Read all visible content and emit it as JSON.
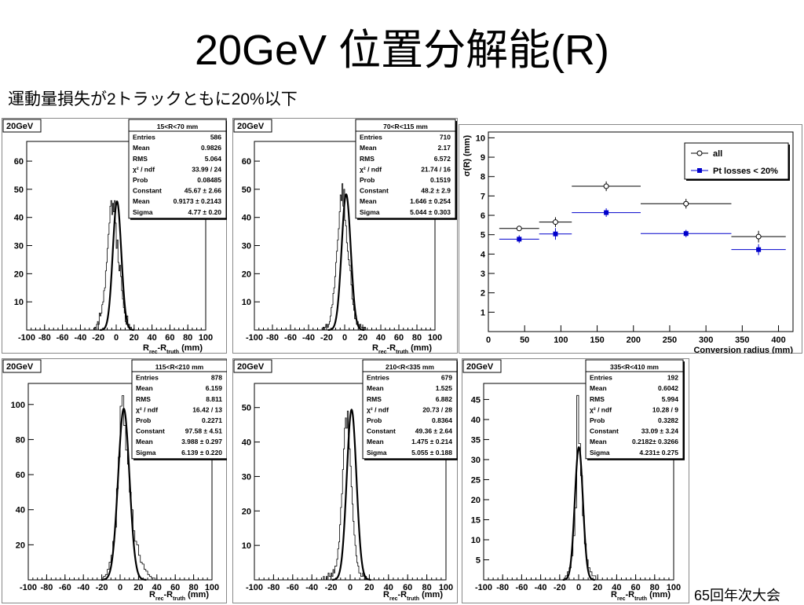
{
  "slide": {
    "title": "20GeV 位置分解能(R)",
    "subtitle": "運動量損失が2トラックともに20%以下",
    "footer": "65回年次大会"
  },
  "chart_data": [
    {
      "type": "histogram",
      "label": "20GeV",
      "stats_title": "15<R<70 mm",
      "stats": [
        [
          "Entries",
          "586"
        ],
        [
          "Mean",
          "0.9826"
        ],
        [
          "RMS",
          "5.064"
        ],
        [
          "χ² / ndf",
          "33.99 / 24"
        ],
        [
          "Prob",
          "0.08485"
        ],
        [
          "Constant",
          "45.67 ± 2.66"
        ],
        [
          "Mean",
          "0.9173 ± 0.2143"
        ],
        [
          "Sigma",
          "4.77 ± 0.20"
        ]
      ],
      "xlim": [
        -100,
        100
      ],
      "ylim": [
        0,
        67
      ],
      "xticks": [
        -100,
        -80,
        -60,
        -40,
        -20,
        0,
        20,
        40,
        60,
        80,
        100
      ],
      "yticks": [
        10,
        20,
        30,
        40,
        50,
        60
      ],
      "xlabel": [
        "R",
        "rec",
        "-R",
        "truth",
        " (mm)"
      ],
      "gauss": {
        "constant": 45.67,
        "mean": 0.9173,
        "sigma": 4.77
      },
      "bins": {
        "start": -24,
        "width": 1,
        "counts": [
          1,
          0,
          2,
          3,
          2,
          6,
          5,
          6,
          9,
          10,
          14,
          15,
          21,
          24,
          29,
          34,
          38,
          44,
          46,
          41,
          45,
          42,
          46,
          38,
          29,
          32,
          24,
          21,
          23,
          19,
          14,
          11,
          8,
          6,
          3,
          2,
          5,
          1,
          2,
          1,
          1,
          0
        ]
      }
    },
    {
      "type": "histogram",
      "label": "20GeV",
      "stats_title": "70<R<115 mm",
      "stats": [
        [
          "Entries",
          "710"
        ],
        [
          "Mean",
          "2.17"
        ],
        [
          "RMS",
          "6.572"
        ],
        [
          "χ² / ndf",
          "21.74 / 16"
        ],
        [
          "Prob",
          "0.1519"
        ],
        [
          "Constant",
          "48.2 ± 2.9"
        ],
        [
          "Mean",
          "1.646 ± 0.254"
        ],
        [
          "Sigma",
          "5.044 ± 0.303"
        ]
      ],
      "xlim": [
        -100,
        100
      ],
      "ylim": [
        0,
        67
      ],
      "xticks": [
        -100,
        -80,
        -60,
        -40,
        -20,
        0,
        20,
        40,
        60,
        80,
        100
      ],
      "yticks": [
        10,
        20,
        30,
        40,
        50,
        60
      ],
      "xlabel": [
        "R",
        "rec",
        "-R",
        "truth",
        " (mm)"
      ],
      "gauss": {
        "constant": 48.2,
        "mean": 1.646,
        "sigma": 5.044
      },
      "bins": {
        "start": -24,
        "width": 1,
        "counts": [
          1,
          0,
          1,
          2,
          2,
          1,
          2,
          3,
          5,
          8,
          9,
          13,
          15,
          19,
          24,
          28,
          32,
          36,
          42,
          48,
          46,
          52,
          44,
          50,
          39,
          37,
          31,
          28,
          25,
          23,
          21,
          16,
          11,
          9,
          7,
          4,
          5,
          2,
          3,
          2,
          1,
          2,
          1,
          1,
          1,
          0,
          1,
          0
        ]
      }
    },
    {
      "type": "scatter",
      "xlabel": "Conversion radius (mm)",
      "ylabel": "σ(R) (mm)",
      "xlim": [
        0,
        420
      ],
      "ylim": [
        0,
        10.3
      ],
      "xticks": [
        0,
        50,
        100,
        150,
        200,
        250,
        300,
        350,
        400
      ],
      "yticks": [
        1,
        2,
        3,
        4,
        5,
        6,
        7,
        8,
        9,
        10
      ],
      "series": [
        {
          "name": "all",
          "color": "#000000",
          "marker": "open-circle",
          "points": [
            [
              42.5,
              27.5,
              5.32,
              0.12
            ],
            [
              92.5,
              22.5,
              5.65,
              0.25
            ],
            [
              162.5,
              47.5,
              7.5,
              0.25
            ],
            [
              272.5,
              62.5,
              6.6,
              0.25
            ],
            [
              372.5,
              37.5,
              4.9,
              0.3
            ]
          ]
        },
        {
          "name": "Pt losses < 20%",
          "color": "#0000cc",
          "marker": "filled-square",
          "points": [
            [
              42.5,
              27.5,
              4.77,
              0.2
            ],
            [
              92.5,
              22.5,
              5.04,
              0.3
            ],
            [
              162.5,
              47.5,
              6.14,
              0.22
            ],
            [
              272.5,
              62.5,
              5.06,
              0.19
            ],
            [
              372.5,
              37.5,
              4.23,
              0.28
            ]
          ]
        }
      ]
    },
    {
      "type": "histogram",
      "label": "20GeV",
      "stats_title": "115<R<210 mm",
      "stats": [
        [
          "Entries",
          "878"
        ],
        [
          "Mean",
          "6.159"
        ],
        [
          "RMS",
          "8.811"
        ],
        [
          "χ² / ndf",
          "16.42 / 13"
        ],
        [
          "Prob",
          "0.2271"
        ],
        [
          "Constant",
          "97.58 ± 4.51"
        ],
        [
          "Mean",
          "3.988 ± 0.297"
        ],
        [
          "Sigma",
          "6.139 ± 0.220"
        ]
      ],
      "xlim": [
        -100,
        100
      ],
      "ylim": [
        0,
        112
      ],
      "xticks": [
        -100,
        -80,
        -60,
        -40,
        -20,
        0,
        20,
        40,
        60,
        80,
        100
      ],
      "yticks": [
        20,
        40,
        60,
        80,
        100
      ],
      "xlabel": [
        "R",
        "rec",
        "-R",
        "truth",
        " (mm)"
      ],
      "gauss": {
        "constant": 97.58,
        "mean": 3.988,
        "sigma": 6.139
      },
      "bins": {
        "start": -20,
        "width": 2,
        "counts": [
          1,
          2,
          3,
          6,
          10,
          14,
          22,
          30,
          52,
          70,
          99,
          105,
          88,
          74,
          66,
          50,
          40,
          28,
          22,
          20,
          14,
          10,
          9,
          6,
          5,
          3,
          2,
          1,
          1,
          0
        ]
      }
    },
    {
      "type": "histogram",
      "label": "20GeV",
      "stats_title": "210<R<335 mm",
      "stats": [
        [
          "Entries",
          "679"
        ],
        [
          "Mean",
          "1.525"
        ],
        [
          "RMS",
          "6.882"
        ],
        [
          "χ² / ndf",
          "20.73 / 28"
        ],
        [
          "Prob",
          "0.8364"
        ],
        [
          "Constant",
          "49.36 ± 2.64"
        ],
        [
          "Mean",
          "1.475 ± 0.214"
        ],
        [
          "Sigma",
          "5.055 ± 0.188"
        ]
      ],
      "xlim": [
        -100,
        100
      ],
      "ylim": [
        0,
        57
      ],
      "xticks": [
        -100,
        -80,
        -60,
        -40,
        -20,
        0,
        20,
        40,
        60,
        80,
        100
      ],
      "yticks": [
        10,
        20,
        30,
        40,
        50
      ],
      "xlabel": [
        "R",
        "rec",
        "-R",
        "truth",
        " (mm)"
      ],
      "gauss": {
        "constant": 49.36,
        "mean": 1.475,
        "sigma": 5.055
      },
      "bins": {
        "start": -28,
        "width": 1,
        "counts": [
          1,
          0,
          0,
          1,
          0,
          2,
          1,
          1,
          2,
          1,
          3,
          2,
          4,
          4,
          6,
          9,
          11,
          16,
          21,
          25,
          32,
          38,
          44,
          47,
          44,
          49,
          42,
          38,
          33,
          27,
          22,
          17,
          13,
          10,
          7,
          5,
          4,
          2,
          2,
          1,
          1,
          2,
          1,
          0,
          1,
          0,
          0
        ]
      }
    },
    {
      "type": "histogram",
      "label": "20GeV",
      "stats_title": "335<R<410 mm",
      "stats": [
        [
          "Entries",
          "192"
        ],
        [
          "Mean",
          "0.6042"
        ],
        [
          "RMS",
          "5.994"
        ],
        [
          "χ² / ndf",
          "10.28 / 9"
        ],
        [
          "Prob",
          "0.3282"
        ],
        [
          "Constant",
          "33.09 ± 3.24"
        ],
        [
          "Mean",
          "0.2182± 0.3266"
        ],
        [
          "Sigma",
          "4.231± 0.275"
        ]
      ],
      "xlim": [
        -100,
        100
      ],
      "ylim": [
        0,
        49
      ],
      "xticks": [
        -100,
        -80,
        -60,
        -40,
        -20,
        0,
        20,
        40,
        60,
        80,
        100
      ],
      "yticks": [
        5,
        10,
        15,
        20,
        25,
        30,
        35,
        40,
        45
      ],
      "xlabel": [
        "R",
        "rec",
        "-R",
        "truth",
        " (mm)"
      ],
      "gauss": {
        "constant": 33.09,
        "mean": 0.2182,
        "sigma": 4.231
      },
      "bins": {
        "start": -14,
        "width": 2,
        "counts": [
          1,
          2,
          3,
          6,
          11,
          18,
          46,
          34,
          26,
          16,
          9,
          5,
          3,
          2,
          1,
          1,
          0
        ]
      }
    }
  ]
}
